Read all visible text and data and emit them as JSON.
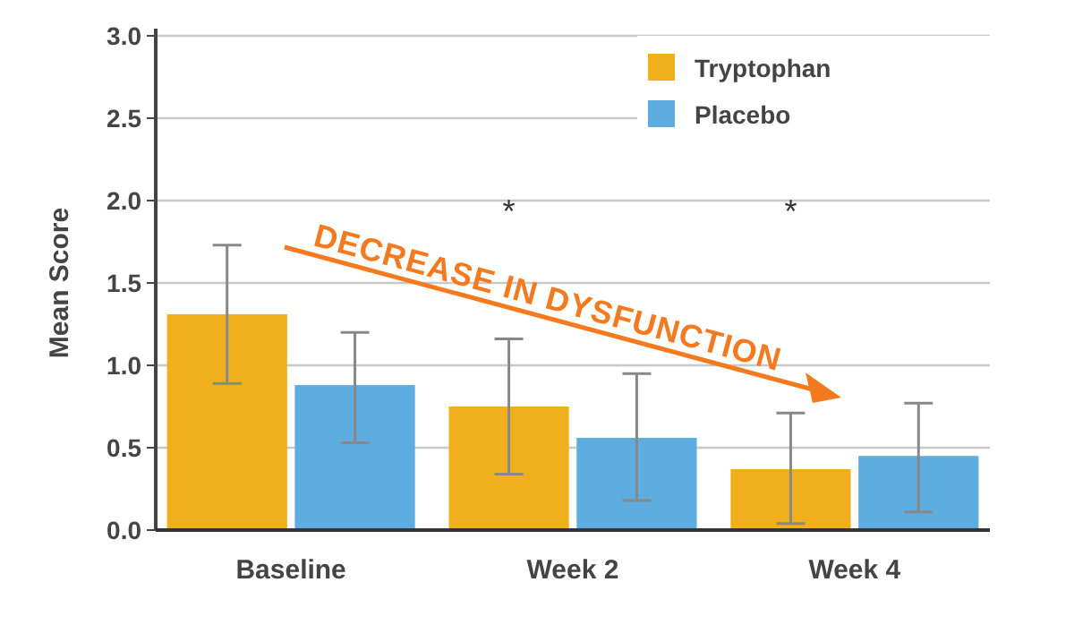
{
  "chart_data": {
    "type": "bar",
    "ylabel": "Mean Score",
    "categories": [
      "Baseline",
      "Week 2",
      "Week 4"
    ],
    "series": [
      {
        "name": "Tryptophan",
        "color": "#f0b01e",
        "values": [
          1.31,
          0.75,
          0.37
        ],
        "errors": [
          [
            0.89,
            1.73
          ],
          [
            0.34,
            1.16
          ],
          [
            0.04,
            0.71
          ]
        ]
      },
      {
        "name": "Placebo",
        "color": "#5dade0",
        "values": [
          0.88,
          0.56,
          0.45
        ],
        "errors": [
          [
            0.53,
            1.2
          ],
          [
            0.18,
            0.95
          ],
          [
            0.11,
            0.77
          ]
        ]
      }
    ],
    "ylim": [
      0,
      3
    ],
    "yticks": [
      {
        "value": 0,
        "label": "0.0"
      },
      {
        "value": 0.5,
        "label": "0.5"
      },
      {
        "value": 1,
        "label": "1.0"
      },
      {
        "value": 1.5,
        "label": "1.5"
      },
      {
        "value": 2,
        "label": "2.0"
      },
      {
        "value": 2.5,
        "label": "2.5"
      },
      {
        "value": 3,
        "label": "3.0"
      }
    ],
    "grid": "y",
    "legend": "top right",
    "annotations": [
      "*",
      "*",
      "DECREASE IN DYSFUNCTION"
    ]
  }
}
